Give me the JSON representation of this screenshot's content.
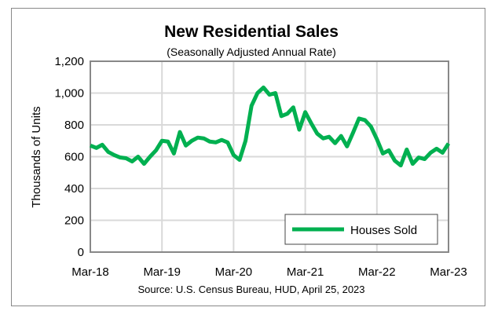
{
  "chart_data": {
    "type": "line",
    "title": "New Residential Sales",
    "subtitle": "(Seasonally Adjusted Annual Rate)",
    "ylabel": "Thousands of Units",
    "xlabel": "",
    "source": "Source:  U.S. Census Bureau, HUD, April 25, 2023",
    "ylim": [
      0,
      1200
    ],
    "yticks": [
      0,
      200,
      400,
      600,
      800,
      "1,000",
      "1,200"
    ],
    "yticks_values": [
      0,
      200,
      400,
      600,
      800,
      1000,
      1200
    ],
    "xtick_labels": [
      "Mar-18",
      "Mar-19",
      "Mar-20",
      "Mar-21",
      "Mar-22",
      "Mar-23"
    ],
    "xtick_index": [
      0,
      12,
      24,
      36,
      48,
      60
    ],
    "grid": true,
    "legend_position": "bottom-right",
    "series": [
      {
        "name": "Houses Sold",
        "color": "#00b050",
        "values": [
          670,
          655,
          675,
          630,
          610,
          595,
          590,
          570,
          600,
          555,
          600,
          640,
          700,
          695,
          620,
          755,
          670,
          700,
          720,
          715,
          695,
          690,
          705,
          690,
          610,
          580,
          700,
          920,
          1000,
          1035,
          990,
          1000,
          855,
          870,
          910,
          770,
          880,
          810,
          745,
          715,
          725,
          685,
          730,
          665,
          750,
          840,
          830,
          790,
          710,
          620,
          640,
          575,
          545,
          645,
          555,
          595,
          585,
          625,
          650,
          625,
          683
        ]
      }
    ]
  }
}
